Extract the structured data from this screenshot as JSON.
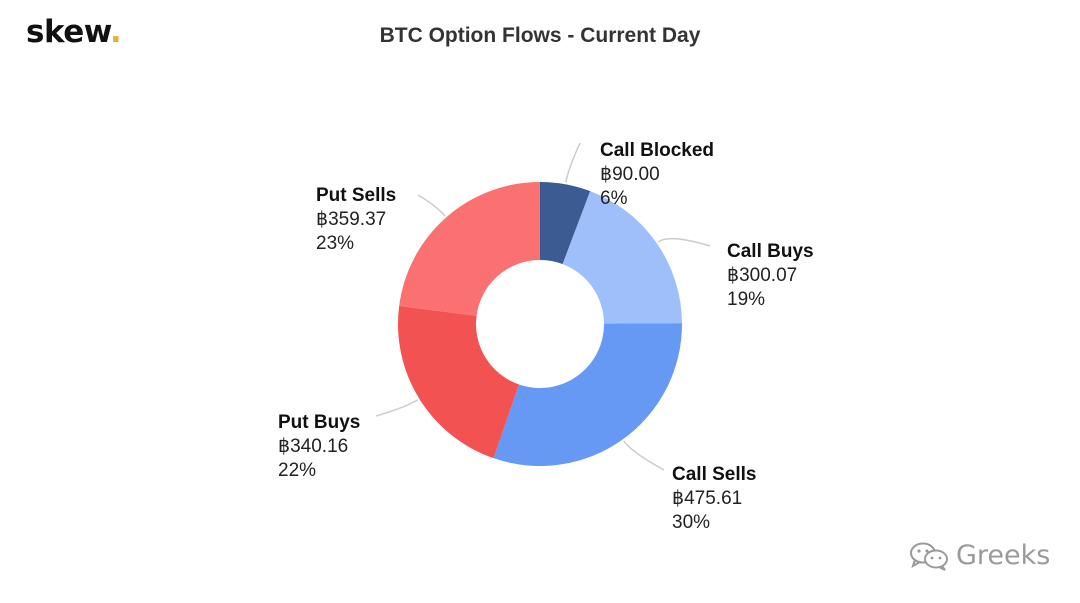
{
  "brand": {
    "name": "skew",
    "dot": "."
  },
  "watermark": {
    "text": "Greeks",
    "icon": "wechat-icon"
  },
  "chart_data": {
    "type": "pie",
    "variant": "donut",
    "title": "BTC Option Flows - Current Day",
    "legend": "none",
    "slices": [
      {
        "label": "Call Blocked",
        "value": "฿90.00",
        "amount": 90.0,
        "percent": "6%",
        "color": "#3b5b92"
      },
      {
        "label": "Call Buys",
        "value": "฿300.07",
        "amount": 300.07,
        "percent": "19%",
        "color": "#9fbffb"
      },
      {
        "label": "Call Sells",
        "value": "฿475.61",
        "amount": 475.61,
        "percent": "30%",
        "color": "#6699f3"
      },
      {
        "label": "Put Buys",
        "value": "฿340.16",
        "amount": 340.16,
        "percent": "22%",
        "color": "#f35252"
      },
      {
        "label": "Put Sells",
        "value": "฿359.37",
        "amount": 359.37,
        "percent": "23%",
        "color": "#fb7172"
      }
    ]
  }
}
